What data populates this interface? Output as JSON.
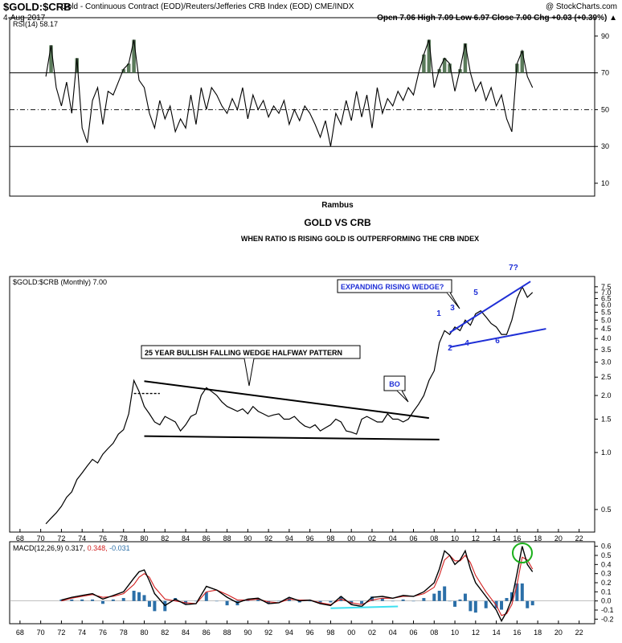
{
  "header": {
    "symbol": "$GOLD:$CRB",
    "description": "Gold - Continuous Contract (EOD)/Reuters/Jefferies CRB Index (EOD) CME/INDX",
    "credit": "@ StockCharts.com",
    "date": "4-Aug-2017",
    "quote": "Open 7.06   High 7.09   Low 6.97   Close 7.00   Chg +0.03 (+0.39%) ▲"
  },
  "colors": {
    "price": "#000000",
    "annotation_blue": "#1f2fd6",
    "rsi_fill": "#5a7a5a",
    "macd_signal": "#d21f1f",
    "histogram": "#2b6fa8",
    "green_circle": "#1bb01b",
    "cyan_line": "#3ee0f0"
  },
  "annotations": {
    "rambus": "Rambus",
    "title": "GOLD VS CRB",
    "subtitle": "WHEN RATIO IS RISING GOLD IS OUTPERFORMING THE CRB INDEX",
    "wedge25": "25 YEAR  BULLISH FALLING WEDGE HALFWAY PATTERN",
    "bo": "BO",
    "expanding": "EXPANDING RISING WEDGE?",
    "n1": "1",
    "n2": "2",
    "n3": "3",
    "n4": "4",
    "n5": "5",
    "n6": "6",
    "n7": "7?"
  },
  "chart_data": [
    {
      "type": "line",
      "panel": "RSI",
      "legend": "RSI(14) 58.17",
      "y_ticks": [
        "90",
        "70",
        "50",
        "30",
        "10"
      ],
      "ylim": [
        3,
        100
      ],
      "reference_lines": [
        70,
        50,
        30
      ],
      "x": [
        1970.5,
        1971.0,
        1971.5,
        1972.0,
        1972.5,
        1973.0,
        1973.5,
        1974.0,
        1974.5,
        1975.0,
        1975.5,
        1976.0,
        1976.5,
        1977.0,
        1977.5,
        1978.0,
        1978.5,
        1979.0,
        1979.5,
        1980.0,
        1980.5,
        1981.0,
        1981.5,
        1982.0,
        1982.5,
        1983.0,
        1983.5,
        1984.0,
        1984.5,
        1985.0,
        1985.5,
        1986.0,
        1986.5,
        1987.0,
        1987.5,
        1988.0,
        1988.5,
        1989.0,
        1989.5,
        1990.0,
        1990.5,
        1991.0,
        1991.5,
        1992.0,
        1992.5,
        1993.0,
        1993.5,
        1994.0,
        1994.5,
        1995.0,
        1995.5,
        1996.0,
        1996.5,
        1997.0,
        1997.5,
        1998.0,
        1998.5,
        1999.0,
        1999.5,
        2000.0,
        2000.5,
        2001.0,
        2001.5,
        2002.0,
        2002.5,
        2003.0,
        2003.5,
        2004.0,
        2004.5,
        2005.0,
        2005.5,
        2006.0,
        2006.5,
        2007.0,
        2007.5,
        2008.0,
        2008.5,
        2009.0,
        2009.5,
        2010.0,
        2010.5,
        2011.0,
        2011.5,
        2012.0,
        2012.5,
        2013.0,
        2013.5,
        2014.0,
        2014.5,
        2015.0,
        2015.5,
        2016.0,
        2016.5,
        2017.0,
        2017.5
      ],
      "values": [
        68,
        85,
        62,
        52,
        65,
        48,
        78,
        40,
        32,
        55,
        62,
        42,
        60,
        58,
        65,
        72,
        75,
        88,
        66,
        62,
        48,
        40,
        55,
        45,
        52,
        38,
        45,
        40,
        58,
        42,
        62,
        50,
        62,
        58,
        52,
        48,
        56,
        50,
        62,
        45,
        58,
        50,
        55,
        46,
        52,
        48,
        55,
        42,
        50,
        44,
        52,
        48,
        42,
        35,
        44,
        30,
        48,
        42,
        55,
        44,
        60,
        46,
        58,
        40,
        62,
        48,
        56,
        52,
        60,
        55,
        62,
        58,
        70,
        80,
        88,
        62,
        72,
        78,
        75,
        60,
        72,
        86,
        70,
        60,
        65,
        55,
        62,
        52,
        58,
        45,
        38,
        75,
        82,
        68,
        62
      ],
      "series": [
        {
          "name": "RSI(14)",
          "last": 58.17
        }
      ]
    },
    {
      "type": "line",
      "panel": "price",
      "title": "$GOLD:$CRB (Monthly) 7.00",
      "scale": "log",
      "y_ticks": [
        "7.5",
        "7.0",
        "6.5",
        "6.0",
        "5.5",
        "5.0",
        "4.5",
        "4.0",
        "3.5",
        "3.0",
        "2.5",
        "2.0",
        "1.5",
        "1.0",
        "0.5"
      ],
      "ylim": [
        0.38,
        8.5
      ],
      "x_ticks": [
        "68",
        "70",
        "72",
        "74",
        "76",
        "78",
        "80",
        "82",
        "84",
        "86",
        "88",
        "90",
        "92",
        "94",
        "96",
        "98",
        "00",
        "02",
        "04",
        "06",
        "08",
        "10",
        "12",
        "14",
        "16",
        "18",
        "20",
        "22"
      ],
      "x": [
        1970.5,
        1971.0,
        1971.5,
        1972.0,
        1972.5,
        1973.0,
        1973.5,
        1974.0,
        1974.5,
        1975.0,
        1975.5,
        1976.0,
        1976.5,
        1977.0,
        1977.5,
        1978.0,
        1978.5,
        1979.0,
        1979.5,
        1980.0,
        1980.5,
        1981.0,
        1981.5,
        1982.0,
        1982.5,
        1983.0,
        1983.5,
        1984.0,
        1984.5,
        1985.0,
        1985.5,
        1986.0,
        1986.5,
        1987.0,
        1987.5,
        1988.0,
        1988.5,
        1989.0,
        1989.5,
        1990.0,
        1990.5,
        1991.0,
        1991.5,
        1992.0,
        1992.5,
        1993.0,
        1993.5,
        1994.0,
        1994.5,
        1995.0,
        1995.5,
        1996.0,
        1996.5,
        1997.0,
        1997.5,
        1998.0,
        1998.5,
        1999.0,
        1999.5,
        2000.0,
        2000.5,
        2001.0,
        2001.5,
        2002.0,
        2002.5,
        2003.0,
        2003.5,
        2004.0,
        2004.5,
        2005.0,
        2005.5,
        2006.0,
        2006.5,
        2007.0,
        2007.5,
        2008.0,
        2008.5,
        2009.0,
        2009.5,
        2010.0,
        2010.5,
        2011.0,
        2011.5,
        2012.0,
        2012.5,
        2013.0,
        2013.5,
        2014.0,
        2014.5,
        2015.0,
        2015.5,
        2016.0,
        2016.5,
        2017.0,
        2017.5
      ],
      "values": [
        0.42,
        0.45,
        0.48,
        0.52,
        0.58,
        0.62,
        0.72,
        0.78,
        0.85,
        0.92,
        0.88,
        0.98,
        1.05,
        1.12,
        1.25,
        1.32,
        1.6,
        2.4,
        2.1,
        1.75,
        1.6,
        1.45,
        1.4,
        1.55,
        1.5,
        1.45,
        1.3,
        1.4,
        1.55,
        1.6,
        2.0,
        2.2,
        2.1,
        2.0,
        1.85,
        1.75,
        1.7,
        1.65,
        1.7,
        1.6,
        1.75,
        1.65,
        1.6,
        1.55,
        1.58,
        1.6,
        1.5,
        1.5,
        1.55,
        1.45,
        1.38,
        1.35,
        1.4,
        1.3,
        1.35,
        1.4,
        1.5,
        1.45,
        1.3,
        1.28,
        1.25,
        1.5,
        1.55,
        1.5,
        1.45,
        1.45,
        1.6,
        1.5,
        1.5,
        1.45,
        1.5,
        1.65,
        1.8,
        2.0,
        2.4,
        2.7,
        3.8,
        4.4,
        4.2,
        4.6,
        4.4,
        5.0,
        4.7,
        5.4,
        5.6,
        5.2,
        4.8,
        4.6,
        4.2,
        4.2,
        5.0,
        6.5,
        7.5,
        6.6,
        7.0
      ],
      "series": [
        {
          "name": "$GOLD:$CRB",
          "last": 7.0
        }
      ]
    },
    {
      "type": "line",
      "panel": "MACD",
      "legend_prefix": "MACD(12,26,9)",
      "legend_macd": "0.317,",
      "legend_signal": "0.348,",
      "legend_hist": "-0.031",
      "y_ticks": [
        "0.6",
        "0.5",
        "0.4",
        "0.3",
        "0.2",
        "0.1",
        "0.0",
        "-0.1",
        "-0.2"
      ],
      "ylim": [
        -0.25,
        0.65
      ],
      "x": [
        1972.0,
        1973.0,
        1974.0,
        1975.0,
        1976.0,
        1977.0,
        1978.0,
        1979.0,
        1979.5,
        1980.0,
        1980.5,
        1981.0,
        1982.0,
        1983.0,
        1984.0,
        1985.0,
        1986.0,
        1987.0,
        1988.0,
        1989.0,
        1990.0,
        1991.0,
        1992.0,
        1993.0,
        1994.0,
        1995.0,
        1996.0,
        1997.0,
        1998.0,
        1999.0,
        2000.0,
        2001.0,
        2002.0,
        2003.0,
        2004.0,
        2005.0,
        2006.0,
        2007.0,
        2008.0,
        2008.5,
        2009.0,
        2009.5,
        2010.0,
        2010.5,
        2011.0,
        2011.5,
        2012.0,
        2013.0,
        2014.0,
        2014.5,
        2015.0,
        2015.5,
        2016.0,
        2016.5,
        2017.0,
        2017.5
      ],
      "values": [
        0.01,
        0.04,
        0.06,
        0.08,
        0.02,
        0.06,
        0.1,
        0.25,
        0.32,
        0.34,
        0.22,
        0.08,
        -0.05,
        0.02,
        -0.04,
        -0.03,
        0.16,
        0.12,
        0.04,
        -0.02,
        0.02,
        0.03,
        -0.03,
        -0.02,
        0.04,
        0.0,
        0.01,
        -0.03,
        -0.05,
        0.05,
        -0.04,
        -0.06,
        0.04,
        0.05,
        0.03,
        0.06,
        0.05,
        0.1,
        0.2,
        0.35,
        0.55,
        0.5,
        0.4,
        0.45,
        0.55,
        0.35,
        0.2,
        0.05,
        -0.1,
        -0.22,
        -0.12,
        0.02,
        0.3,
        0.6,
        0.4,
        0.32
      ],
      "signal": [
        0.0,
        0.03,
        0.05,
        0.07,
        0.04,
        0.05,
        0.08,
        0.18,
        0.26,
        0.3,
        0.26,
        0.15,
        0.02,
        0.0,
        -0.02,
        -0.03,
        0.1,
        0.12,
        0.07,
        0.01,
        0.01,
        0.02,
        -0.01,
        -0.02,
        0.02,
        0.01,
        0.01,
        -0.02,
        -0.04,
        0.02,
        -0.02,
        -0.04,
        0.01,
        0.03,
        0.03,
        0.05,
        0.05,
        0.08,
        0.15,
        0.28,
        0.45,
        0.5,
        0.44,
        0.44,
        0.5,
        0.42,
        0.28,
        0.1,
        -0.05,
        -0.16,
        -0.14,
        -0.04,
        0.18,
        0.48,
        0.45,
        0.35
      ],
      "x_ticks": [
        "68",
        "70",
        "72",
        "74",
        "76",
        "78",
        "80",
        "82",
        "84",
        "86",
        "88",
        "90",
        "92",
        "94",
        "96",
        "98",
        "00",
        "02",
        "04",
        "06",
        "08",
        "10",
        "12",
        "14",
        "16",
        "18",
        "20",
        "22"
      ]
    }
  ]
}
